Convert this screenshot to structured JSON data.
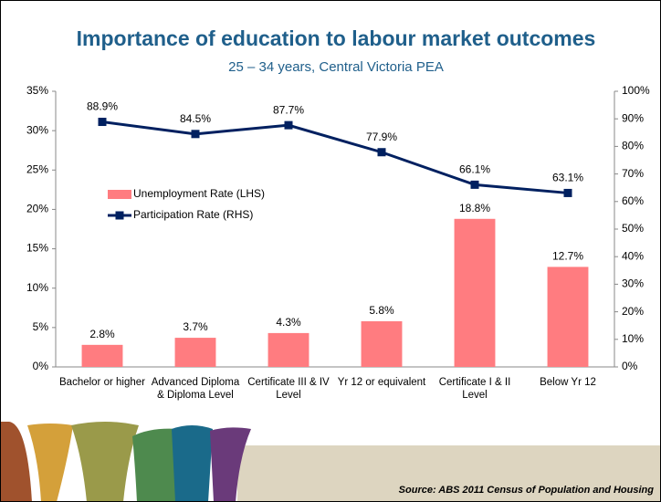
{
  "chart_data": {
    "type": "bar",
    "title": "Importance of education to labour market outcomes",
    "subtitle": "25 – 34 years, Central Victoria PEA",
    "source": "Source: ABS 2011 Census of Population and Housing",
    "categories": [
      "Bachelor or higher",
      "Advanced Diploma & Diploma Level",
      "Certificate III & IV Level",
      "Yr 12 or equivalent",
      "Certificate I & II Level",
      "Below Yr 12"
    ],
    "series": [
      {
        "name": "Unemployment Rate (LHS)",
        "type": "bar",
        "color": "#ff7c80",
        "values": [
          2.8,
          3.7,
          4.3,
          5.8,
          18.8,
          12.7
        ],
        "value_labels": [
          "2.8%",
          "3.7%",
          "4.3%",
          "5.8%",
          "18.8%",
          "12.7%"
        ]
      },
      {
        "name": "Participation Rate (RHS)",
        "type": "line",
        "color": "#002060",
        "axis": "y2",
        "values": [
          88.9,
          84.5,
          87.7,
          77.9,
          66.1,
          63.1
        ],
        "value_labels": [
          "88.9%",
          "84.5%",
          "87.7%",
          "77.9%",
          "66.1%",
          "63.1%"
        ]
      }
    ],
    "ylim": [
      0,
      35
    ],
    "yticks": [
      {
        "value": 0,
        "label": "0%"
      },
      {
        "value": 5,
        "label": "5%"
      },
      {
        "value": 10,
        "label": "10%"
      },
      {
        "value": 15,
        "label": "15%"
      },
      {
        "value": 20,
        "label": "20%"
      },
      {
        "value": 25,
        "label": "25%"
      },
      {
        "value": 30,
        "label": "30%"
      },
      {
        "value": 35,
        "label": "35%"
      }
    ],
    "y2lim": [
      0,
      100
    ],
    "y2ticks": [
      {
        "value": 0,
        "label": "0%"
      },
      {
        "value": 10,
        "label": "10%"
      },
      {
        "value": 20,
        "label": "20%"
      },
      {
        "value": 30,
        "label": "30%"
      },
      {
        "value": 40,
        "label": "40%"
      },
      {
        "value": 50,
        "label": "50%"
      },
      {
        "value": 60,
        "label": "60%"
      },
      {
        "value": 70,
        "label": "70%"
      },
      {
        "value": 80,
        "label": "80%"
      },
      {
        "value": 90,
        "label": "90%"
      },
      {
        "value": 100,
        "label": "100%"
      }
    ],
    "grid": false,
    "legend": "left"
  }
}
